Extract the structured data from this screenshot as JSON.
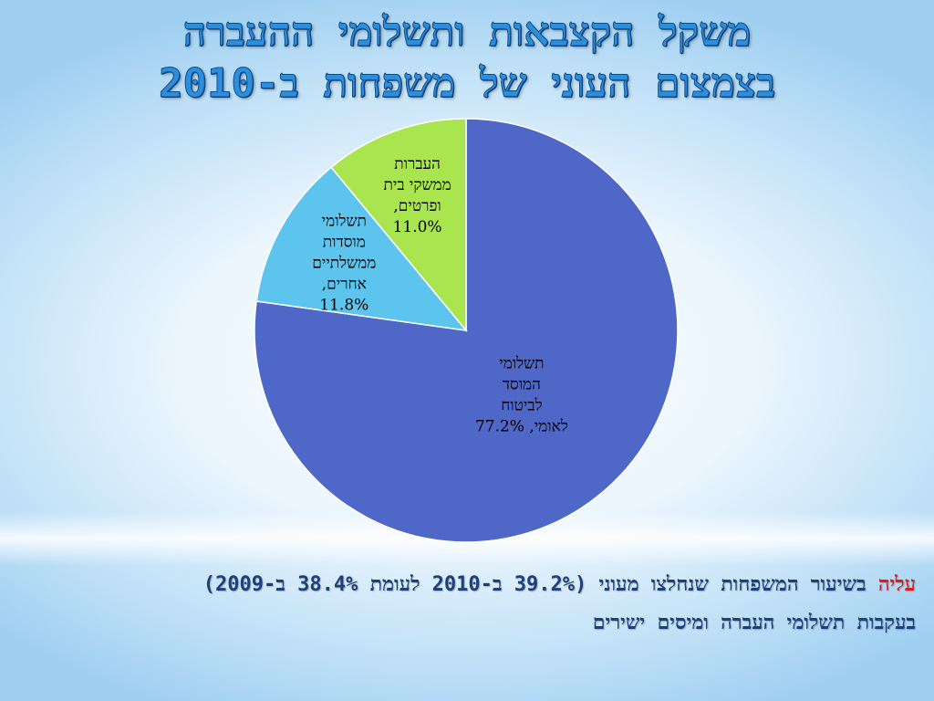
{
  "slide": {
    "title_line1": "משקל הקצבאות ותשלומי ההעברה",
    "title_line2": "בצמצום העוני של משפחות ב-2010",
    "note_highlight": "עליה",
    "note_line1_rest": " בשיעור המשפחות שנחלצו מעוני (39.2% ב-2010 לעומת 38.4% ב-2009)",
    "note_line2": "בעקבות תשלומי העברה ומיסים ישירים"
  },
  "chart_data": {
    "type": "pie",
    "title": "",
    "start": "12 o'clock",
    "direction": "clockwise",
    "legend": "none",
    "slices": [
      {
        "label_lines": [
          "תשלומי",
          "המוסד",
          "לביטוח",
          "לאומי, 77.2%"
        ],
        "value": 77.2,
        "color": "#4f67c6"
      },
      {
        "label_lines": [
          "תשלומי",
          "מוסדות",
          "ממשלתיים",
          "אחרים,",
          "11.8%"
        ],
        "value": 11.8,
        "color": "#5dc4ee"
      },
      {
        "label_lines": [
          "העברות",
          "ממשקי בית",
          "ופרטים,",
          "11.0%"
        ],
        "value": 11.0,
        "color": "#a8e54f"
      }
    ]
  }
}
